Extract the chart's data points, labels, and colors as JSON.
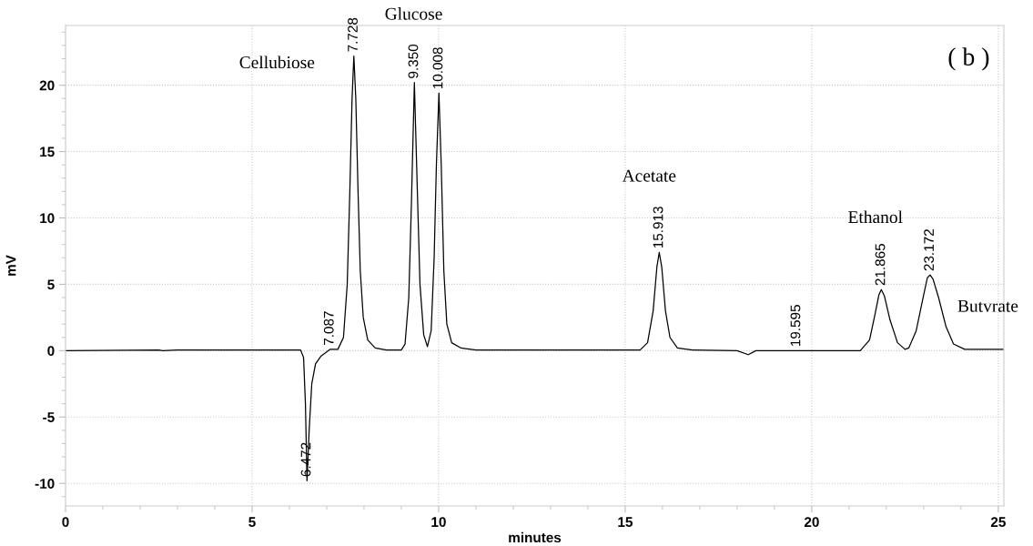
{
  "chart_data": {
    "type": "line",
    "xlabel": "minutes",
    "ylabel": "mV",
    "xlim": [
      0,
      25.15
    ],
    "ylim": [
      -11.7,
      24.5
    ],
    "xticks": [
      0,
      5,
      10,
      15,
      20,
      25
    ],
    "yticks": [
      -10,
      -5,
      0,
      5,
      10,
      15,
      20
    ],
    "grid": true,
    "line_style": "solid",
    "marker": "none",
    "series": [
      {
        "color": "#000000",
        "x": [
          0,
          2.5,
          2.6,
          3,
          6.3,
          6.38,
          6.43,
          6.472,
          6.53,
          6.6,
          6.7,
          6.85,
          7.087,
          7.3,
          7.45,
          7.55,
          7.62,
          7.68,
          7.728,
          7.78,
          7.84,
          7.9,
          7.98,
          8.1,
          8.3,
          8.6,
          9.0,
          9.1,
          9.2,
          9.27,
          9.35,
          9.43,
          9.5,
          9.6,
          9.7,
          9.8,
          9.88,
          9.94,
          10.008,
          10.07,
          10.14,
          10.22,
          10.35,
          10.6,
          11,
          15.4,
          15.6,
          15.75,
          15.85,
          15.913,
          15.98,
          16.08,
          16.2,
          16.4,
          16.8,
          18.0,
          18.3,
          18.5,
          21.3,
          21.55,
          21.7,
          21.8,
          21.865,
          21.95,
          22.1,
          22.3,
          22.5,
          22.6,
          22.8,
          23.0,
          23.1,
          23.172,
          23.25,
          23.4,
          23.6,
          23.8,
          24.1,
          25.15
        ],
        "values": [
          0,
          0.05,
          0,
          0.05,
          0.05,
          -0.5,
          -4,
          -9.8,
          -6,
          -2.5,
          -1,
          -0.4,
          0.1,
          0.1,
          1,
          5,
          12,
          19,
          22.2,
          19,
          12,
          6,
          2.5,
          0.8,
          0.2,
          0.05,
          0.05,
          0.5,
          4,
          11,
          20.2,
          12,
          5,
          1.2,
          0.3,
          1.5,
          7,
          14,
          19.4,
          14,
          6,
          2,
          0.6,
          0.2,
          0.05,
          0.05,
          0.6,
          3,
          6.3,
          7.4,
          6.3,
          3,
          1,
          0.2,
          0.05,
          0,
          -0.3,
          0,
          0,
          0.8,
          2.8,
          4.2,
          4.6,
          4.1,
          2.3,
          0.6,
          0.1,
          0.2,
          1.5,
          4.2,
          5.5,
          5.7,
          5.4,
          4,
          1.8,
          0.5,
          0.1,
          0.1
        ]
      }
    ],
    "annotations": [
      {
        "text": "6.472",
        "x": 6.472,
        "y": -9.8
      },
      {
        "text": "7.087",
        "x": 7.087,
        "y": 0.1
      },
      {
        "text": "7.728",
        "x": 7.728,
        "y": 22.2
      },
      {
        "text": "9.350",
        "x": 9.35,
        "y": 20.2
      },
      {
        "text": "10.008",
        "x": 10.008,
        "y": 19.4
      },
      {
        "text": "15.913",
        "x": 15.913,
        "y": 7.4
      },
      {
        "text": "19.595",
        "x": 19.595,
        "y": 0
      },
      {
        "text": "21.865",
        "x": 21.865,
        "y": 4.6
      },
      {
        "text": "23.172",
        "x": 23.172,
        "y": 5.7
      },
      "Cellubiose",
      "Glucose",
      "Acetate",
      "Ethanol",
      "Butvrate",
      "( b )"
    ]
  }
}
